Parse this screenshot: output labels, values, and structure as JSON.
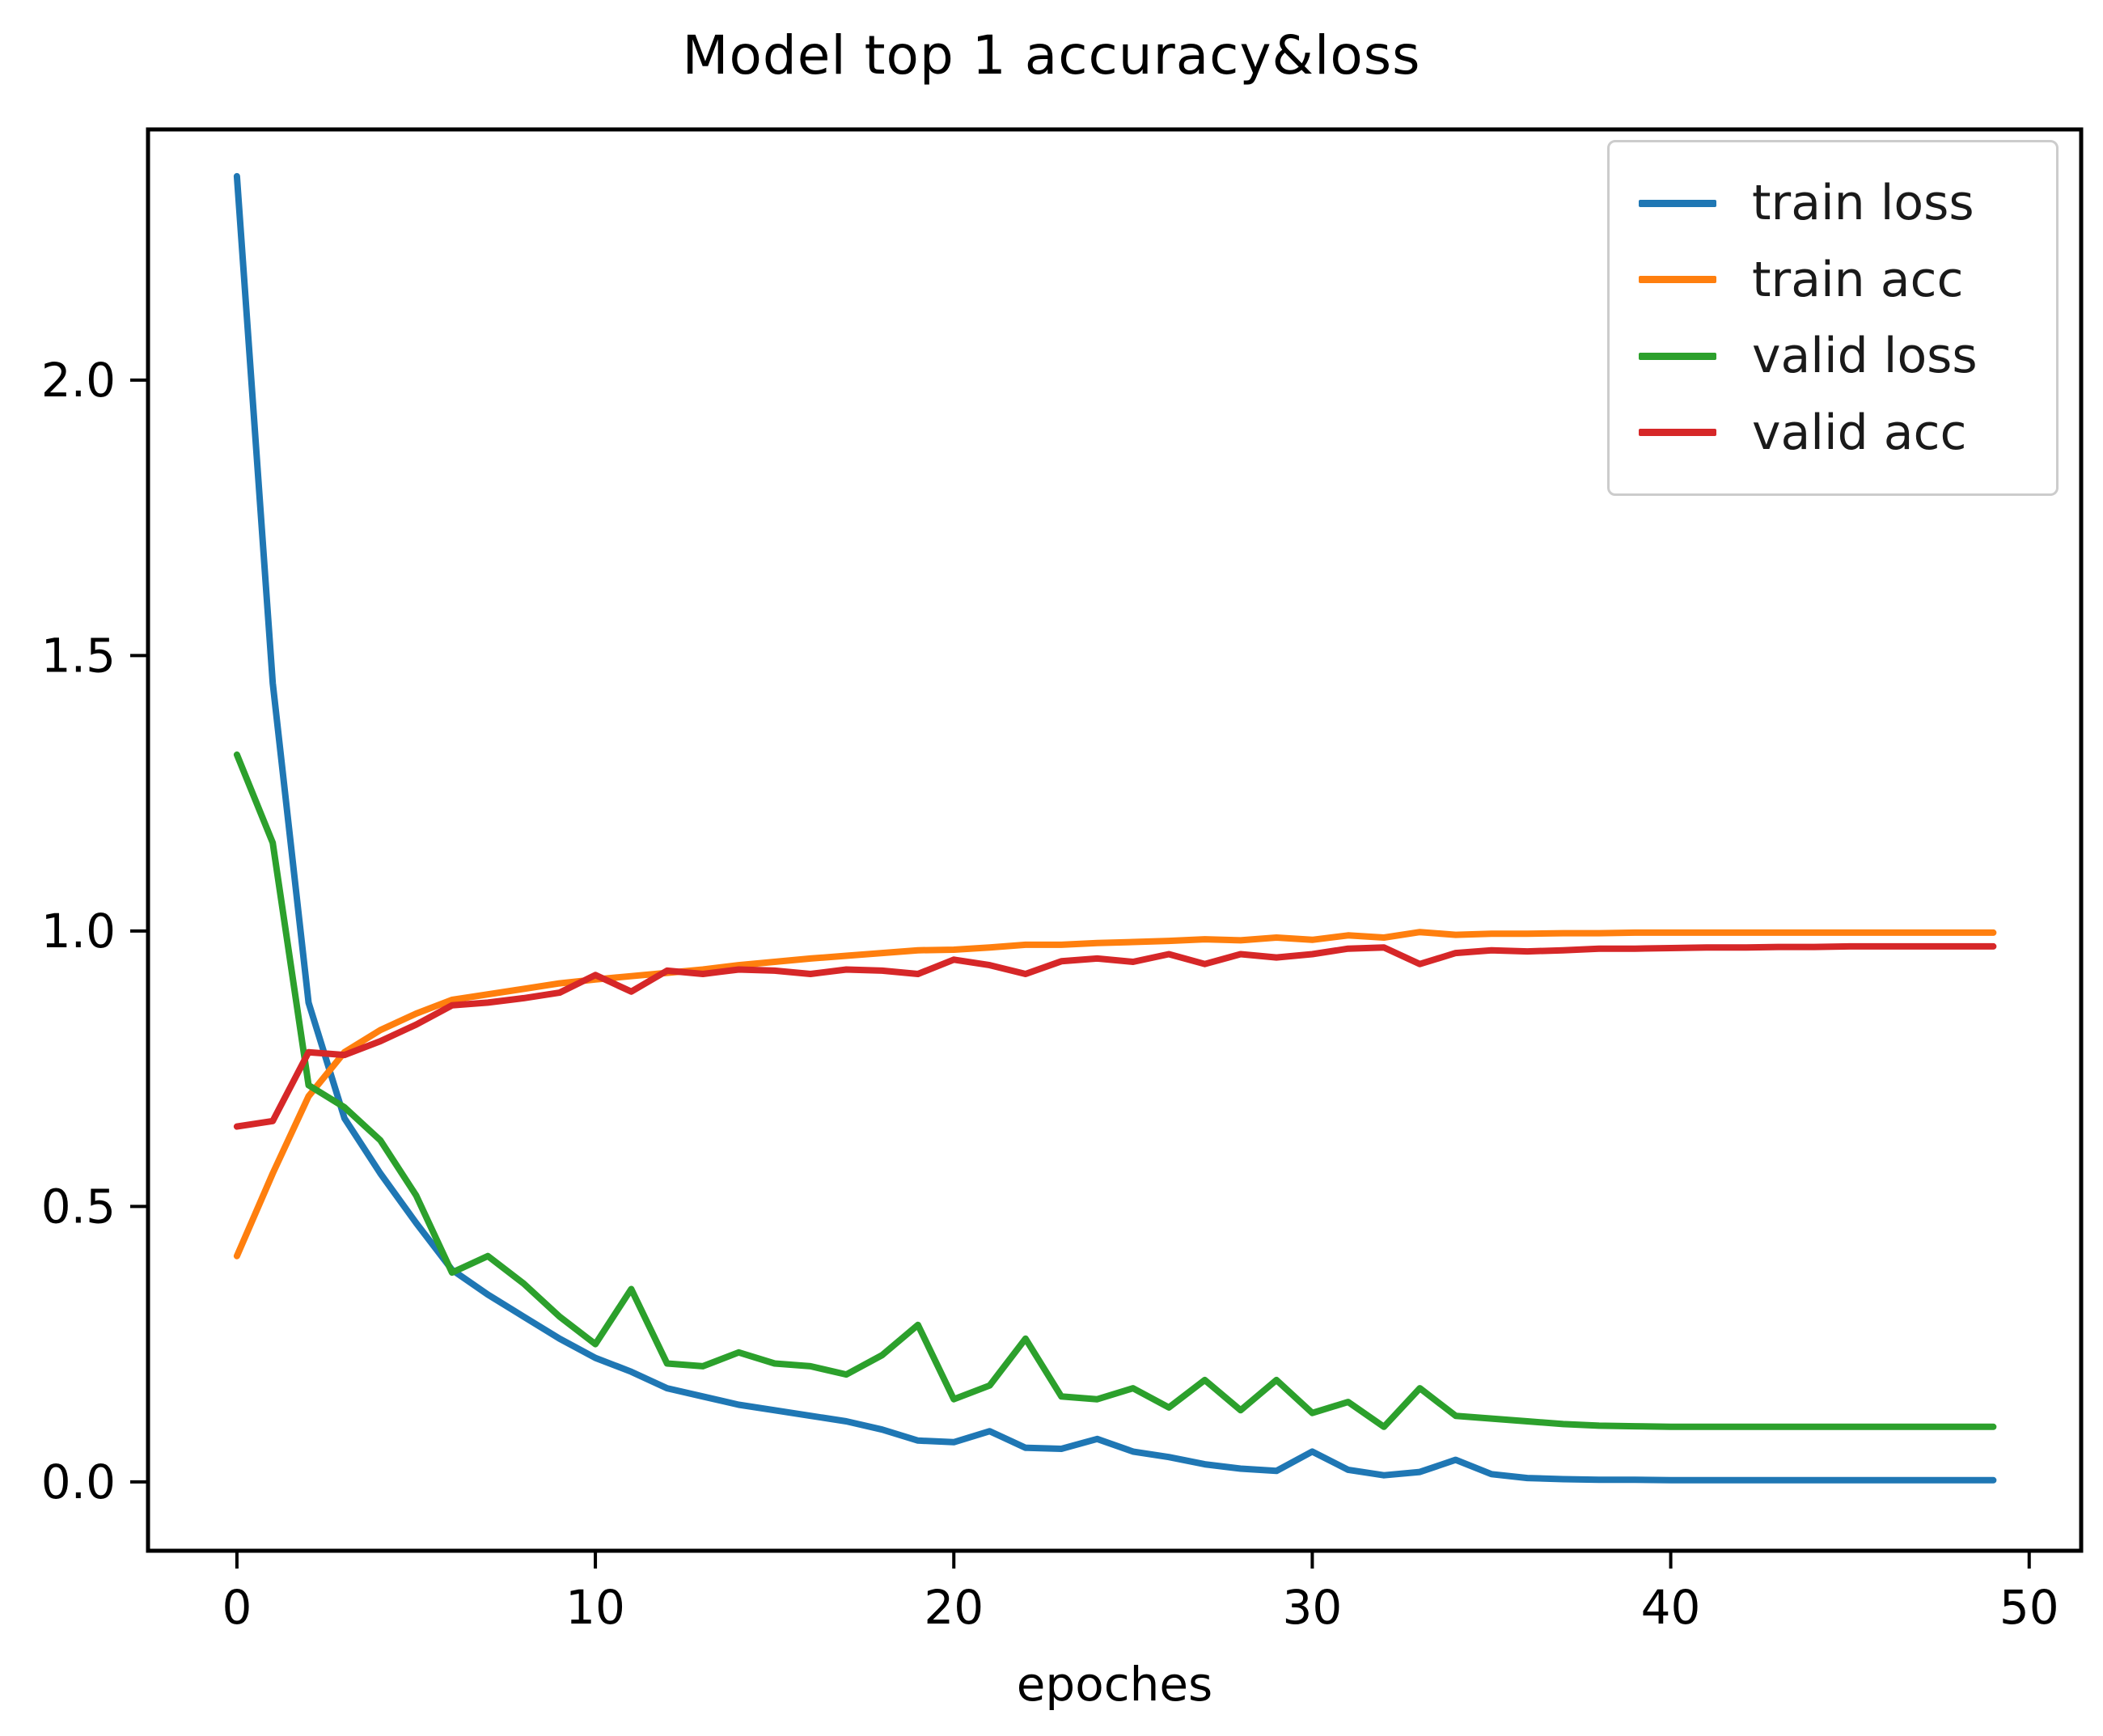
{
  "title": "Model top 1 accuracy&loss",
  "xlabel": "epoches",
  "chart_data": {
    "type": "line",
    "title": "Model top 1 accuracy&loss",
    "xlabel": "epoches",
    "ylabel": "",
    "grid": false,
    "legend_position": "upper right",
    "xlim": [
      -2.48,
      51.45
    ],
    "ylim": [
      -0.125,
      2.455
    ],
    "xtick_values": [
      0,
      10,
      20,
      30,
      40,
      50
    ],
    "xtick_labels": [
      "0",
      "10",
      "20",
      "30",
      "40",
      "50"
    ],
    "ytick_values": [
      0.0,
      0.5,
      1.0,
      1.5,
      2.0
    ],
    "ytick_labels": [
      "0.0",
      "0.5",
      "1.0",
      "1.5",
      "2.0"
    ],
    "epochs": [
      0,
      1,
      2,
      3,
      4,
      5,
      6,
      7,
      8,
      9,
      10,
      11,
      12,
      13,
      14,
      15,
      16,
      17,
      18,
      19,
      20,
      21,
      22,
      23,
      24,
      25,
      26,
      27,
      28,
      29,
      30,
      31,
      32,
      33,
      34,
      35,
      36,
      37,
      38,
      39,
      40,
      41,
      42,
      43,
      44,
      45,
      46,
      47,
      48,
      49
    ],
    "series": [
      {
        "name": "train loss",
        "color": "#1f77b4",
        "values": [
          2.37,
          1.45,
          0.87,
          0.66,
          0.56,
          0.47,
          0.385,
          0.34,
          0.3,
          0.26,
          0.225,
          0.2,
          0.17,
          0.155,
          0.14,
          0.13,
          0.12,
          0.11,
          0.095,
          0.075,
          0.072,
          0.092,
          0.062,
          0.06,
          0.078,
          0.055,
          0.045,
          0.032,
          0.024,
          0.02,
          0.055,
          0.022,
          0.012,
          0.018,
          0.04,
          0.014,
          0.007,
          0.005,
          0.004,
          0.004,
          0.003,
          0.003,
          0.003,
          0.003,
          0.003,
          0.003,
          0.003,
          0.003,
          0.003,
          0.003
        ]
      },
      {
        "name": "train acc",
        "color": "#ff7f0e",
        "values": [
          0.41,
          0.56,
          0.7,
          0.78,
          0.82,
          0.85,
          0.875,
          0.885,
          0.895,
          0.905,
          0.912,
          0.918,
          0.924,
          0.93,
          0.938,
          0.944,
          0.95,
          0.955,
          0.96,
          0.965,
          0.966,
          0.97,
          0.975,
          0.975,
          0.978,
          0.98,
          0.982,
          0.985,
          0.983,
          0.988,
          0.984,
          0.992,
          0.988,
          0.998,
          0.993,
          0.995,
          0.995,
          0.996,
          0.996,
          0.997,
          0.997,
          0.997,
          0.997,
          0.997,
          0.997,
          0.997,
          0.997,
          0.997,
          0.997,
          0.997
        ]
      },
      {
        "name": "valid loss",
        "color": "#2ca02c",
        "values": [
          1.32,
          1.16,
          0.72,
          0.68,
          0.62,
          0.52,
          0.38,
          0.41,
          0.36,
          0.3,
          0.25,
          0.35,
          0.215,
          0.21,
          0.235,
          0.215,
          0.21,
          0.195,
          0.23,
          0.285,
          0.15,
          0.175,
          0.26,
          0.155,
          0.15,
          0.17,
          0.135,
          0.185,
          0.13,
          0.185,
          0.125,
          0.145,
          0.1,
          0.17,
          0.12,
          0.115,
          0.11,
          0.105,
          0.102,
          0.101,
          0.1,
          0.1,
          0.1,
          0.1,
          0.1,
          0.1,
          0.1,
          0.1,
          0.1,
          0.1
        ]
      },
      {
        "name": "valid acc",
        "color": "#d62728",
        "values": [
          0.645,
          0.655,
          0.78,
          0.775,
          0.8,
          0.83,
          0.865,
          0.87,
          0.878,
          0.888,
          0.92,
          0.89,
          0.928,
          0.922,
          0.93,
          0.928,
          0.922,
          0.93,
          0.928,
          0.922,
          0.948,
          0.938,
          0.922,
          0.945,
          0.95,
          0.944,
          0.958,
          0.94,
          0.958,
          0.952,
          0.958,
          0.968,
          0.97,
          0.94,
          0.96,
          0.965,
          0.963,
          0.965,
          0.968,
          0.968,
          0.969,
          0.97,
          0.97,
          0.971,
          0.971,
          0.972,
          0.972,
          0.972,
          0.972,
          0.972
        ]
      }
    ]
  }
}
